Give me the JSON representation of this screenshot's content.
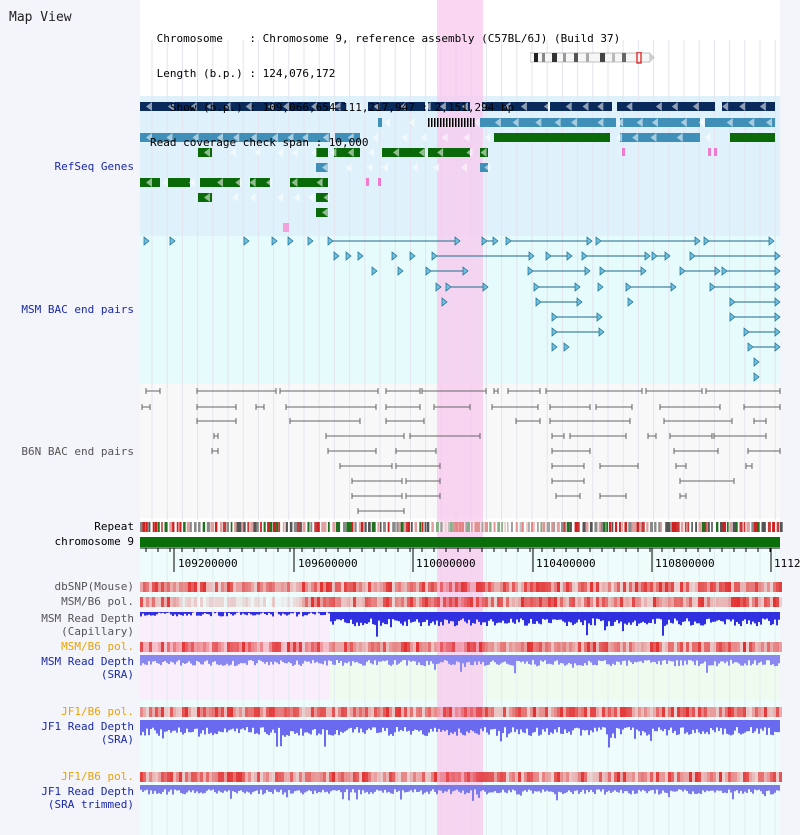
{
  "page_title": "Map View",
  "header": {
    "line1": " Chromosome    : Chromosome 9, reference assembly (C57BL/6J) (Build 37)",
    "line2": " Length (b.p.) : 124,076,172",
    "line3": "   Show (b.p.) : 109,066,654-111,217,947 : 2,151,294 bp",
    "line4": "Read coverage check span : 10,000"
  },
  "tracks": {
    "refseq_label": "RefSeq Genes",
    "msm_bac_label": "MSM BAC end pairs",
    "b6n_bac_label": "B6N BAC end pairs",
    "repeat_label": "Repeat",
    "chromosome_label": "chromosome 9",
    "dbsnp_label": "dbSNP(Mouse)",
    "msm_b6_pol_label": "MSM/B6 pol.",
    "msm_read_cap_label1": "MSM Read Depth",
    "msm_read_cap_label2": "(Capillary)",
    "msm_b6_pol2_label": "MSM/B6 pol.",
    "msm_read_sra_label1": "MSM Read Depth",
    "msm_read_sra_label2": "(SRA)",
    "jf1_b6_pol_label": "JF1/B6 pol.",
    "jf1_read_sra_label1": "JF1 Read Depth",
    "jf1_read_sra_label2": "(SRA)",
    "jf1_b6_pol2_label": "JF1/B6 pol.",
    "jf1_read_trim_label1": "JF1 Read Depth",
    "jf1_read_trim_label2": "(SRA trimmed)"
  },
  "axis": {
    "ticks": [
      "109200000",
      "109600000",
      "110000000",
      "110400000",
      "110800000",
      "1112"
    ]
  },
  "colors": {
    "refseq_dark": "#0b2a5c",
    "refseq_mid": "#3f8fb8",
    "refseq_green": "#0a6a0a",
    "highlight": "#f8c8ee",
    "msm_bac": "#1a6a8c",
    "b6n_bac": "#666666",
    "snp_red": "#e23030",
    "depth_blue": "#3030e0",
    "depth_lavender": "#8888f0"
  }
}
